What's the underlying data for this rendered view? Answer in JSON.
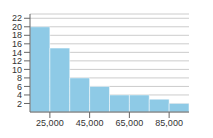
{
  "chart_data": {
    "type": "histogram",
    "bins": [
      15000,
      25000,
      35000,
      45000,
      55000,
      65000,
      75000,
      85000,
      95000
    ],
    "values": [
      20,
      15,
      8,
      6,
      4,
      4,
      3,
      2
    ],
    "color": "#8ecae6",
    "xlim": [
      15000,
      95000
    ],
    "xticks": [
      {
        "value": 25000,
        "label": "25,000"
      },
      {
        "value": 45000,
        "label": "45,000"
      },
      {
        "value": 65000,
        "label": "65,000"
      },
      {
        "value": 85000,
        "label": "85,000"
      }
    ],
    "ylim": [
      0,
      23
    ],
    "yticks": [
      2,
      4,
      6,
      8,
      10,
      12,
      14,
      16,
      18,
      20,
      22
    ],
    "grid": true
  }
}
